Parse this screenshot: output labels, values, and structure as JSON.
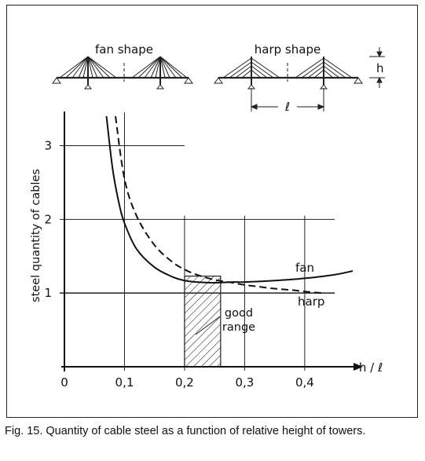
{
  "caption": "Fig. 15. Quantity of cable steel as a function of relative height of towers.",
  "sketch": {
    "fan_label": "fan shape",
    "harp_label": "harp shape",
    "h_label": "h",
    "l_label": "ℓ"
  },
  "annotations": {
    "good": "good",
    "range": "range"
  },
  "chart_data": {
    "type": "line",
    "xlabel": "h / ℓ",
    "ylabel": "steel quantity of cables",
    "xlim": [
      0,
      0.5
    ],
    "ylim": [
      0,
      3.4
    ],
    "x_ticks": [
      {
        "value": 0,
        "label": "0"
      },
      {
        "value": 0.1,
        "label": "0,1"
      },
      {
        "value": 0.2,
        "label": "0,2"
      },
      {
        "value": 0.3,
        "label": "0,3"
      },
      {
        "value": 0.4,
        "label": "0,4"
      }
    ],
    "y_ticks": [
      {
        "value": 1,
        "label": "1"
      },
      {
        "value": 2,
        "label": "2"
      },
      {
        "value": 3,
        "label": "3"
      }
    ],
    "grid": true,
    "series": [
      {
        "name": "fan",
        "style": "solid",
        "x": [
          0.07,
          0.08,
          0.09,
          0.1,
          0.12,
          0.15,
          0.18,
          0.2,
          0.22,
          0.25,
          0.28,
          0.3,
          0.35,
          0.4,
          0.45,
          0.48
        ],
        "y": [
          3.4,
          2.7,
          2.25,
          1.95,
          1.6,
          1.35,
          1.22,
          1.17,
          1.15,
          1.14,
          1.15,
          1.15,
          1.17,
          1.2,
          1.25,
          1.3
        ]
      },
      {
        "name": "harp",
        "style": "dashed",
        "x": [
          0.085,
          0.1,
          0.12,
          0.15,
          0.18,
          0.2,
          0.22,
          0.25,
          0.28,
          0.3,
          0.32,
          0.35,
          0.38,
          0.4,
          0.43
        ],
        "y": [
          3.4,
          2.55,
          2.05,
          1.65,
          1.42,
          1.32,
          1.25,
          1.18,
          1.14,
          1.11,
          1.09,
          1.06,
          1.04,
          1.02,
          1.0
        ]
      }
    ],
    "shaded_region": {
      "label": "good range",
      "x": [
        0.2,
        0.26
      ]
    }
  }
}
